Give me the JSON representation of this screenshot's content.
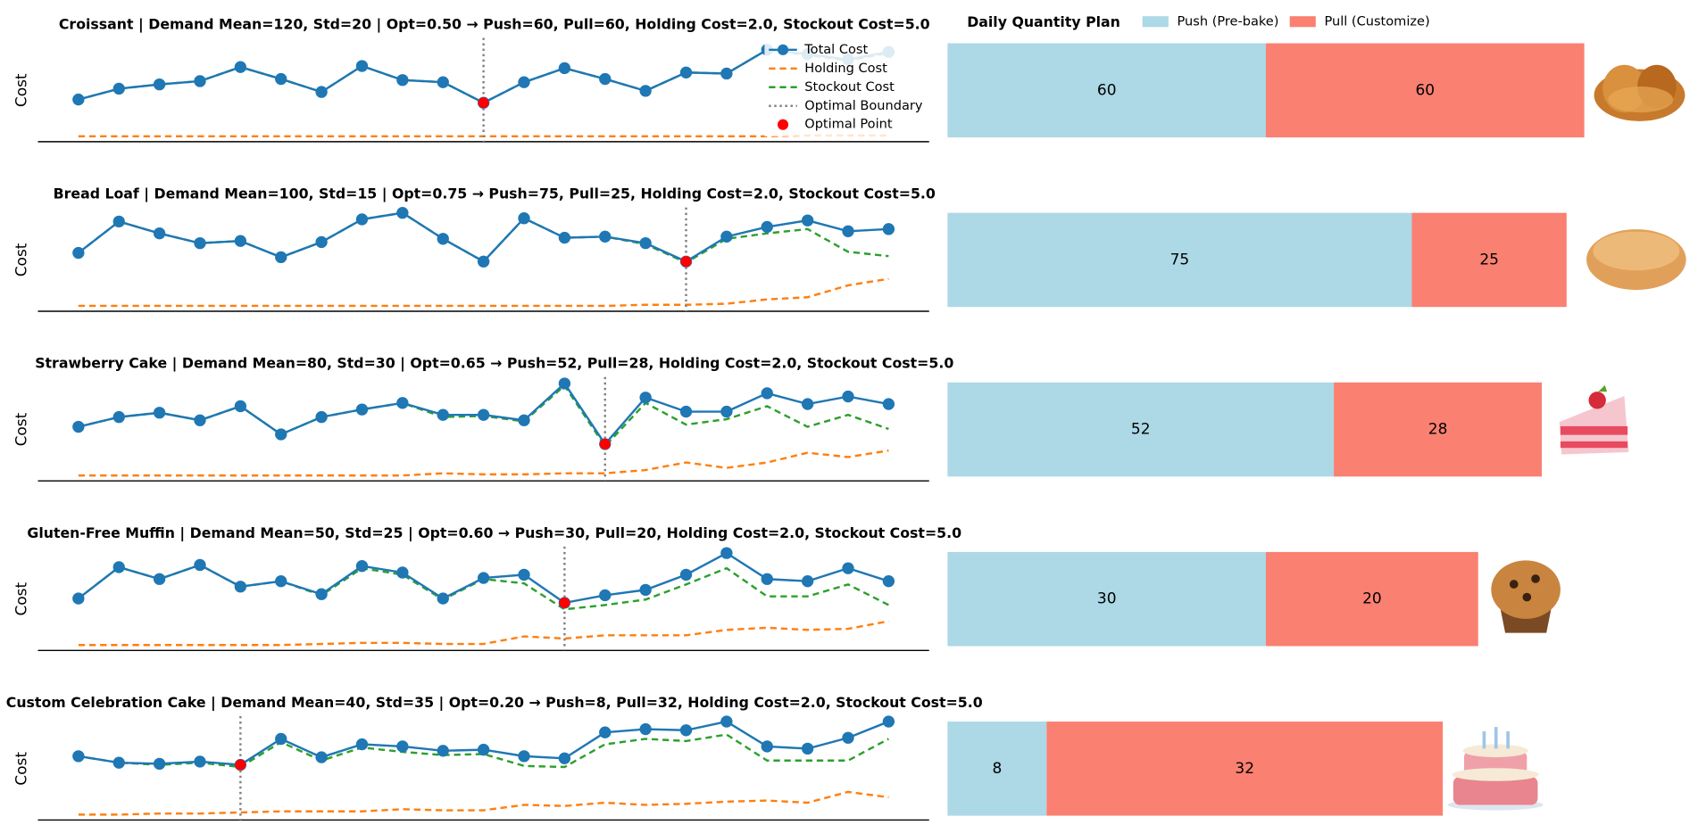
{
  "chart_data": [
    {
      "type": "line",
      "title": "Croissant | Demand Mean=120, Std=20 | Opt=0.50 → Push=60, Pull=60, Holding Cost=2.0, Stockout Cost=5.0",
      "ylabel": "Cost",
      "x": [
        0,
        0.05,
        0.1,
        0.15,
        0.2,
        0.25,
        0.3,
        0.35,
        0.4,
        0.45,
        0.5,
        0.55,
        0.6,
        0.65,
        0.7,
        0.75,
        0.8,
        0.85,
        0.9,
        0.95,
        1
      ],
      "xlim": [
        -0.05,
        1.05
      ],
      "ylim": [
        -5,
        90
      ],
      "optimal_x": 0.5,
      "legend": {
        "corner": "upper right",
        "boundary": "Optimal Boundary",
        "point": "Optimal Point",
        "point_color": "#ff0000",
        "boundary_color": "#808080"
      },
      "series": [
        {
          "name": "Total Cost",
          "color": "#1f77b4",
          "values": [
            34,
            44,
            48,
            51,
            64,
            53,
            41,
            65,
            52,
            50,
            31,
            50,
            63,
            53,
            42,
            59,
            58,
            80,
            76,
            71,
            78
          ]
        },
        {
          "name": "Holding Cost",
          "color": "#ff7f0e",
          "values": [
            0,
            0,
            0,
            0,
            0,
            0,
            0,
            0,
            0,
            0,
            0,
            0,
            0,
            0,
            0,
            0,
            0,
            0,
            1,
            1,
            1
          ]
        },
        {
          "name": "Stockout Cost",
          "color": "#2ca02c",
          "values": [
            34,
            44,
            48,
            51,
            64,
            53,
            41,
            65,
            52,
            50,
            31,
            50,
            63,
            53,
            42,
            59,
            58,
            80,
            75,
            70,
            77
          ]
        }
      ]
    },
    {
      "type": "line",
      "title": "Bread Loaf | Demand Mean=100, Std=15 | Opt=0.75 → Push=75, Pull=25, Holding Cost=2.0, Stockout Cost=5.0",
      "ylabel": "Cost",
      "x": [
        0,
        0.05,
        0.1,
        0.15,
        0.2,
        0.25,
        0.3,
        0.35,
        0.4,
        0.45,
        0.5,
        0.55,
        0.6,
        0.65,
        0.7,
        0.75,
        0.8,
        0.85,
        0.9,
        0.95,
        1
      ],
      "xlim": [
        -0.05,
        1.05
      ],
      "ylim": [
        -5,
        90
      ],
      "optimal_x": 0.75,
      "series": [
        {
          "name": "Total Cost",
          "color": "#1f77b4",
          "values": [
            49,
            78,
            67,
            58,
            60,
            45,
            59,
            80,
            86,
            62,
            41,
            81,
            63,
            64,
            58,
            41,
            64,
            73,
            79,
            69,
            71
          ]
        },
        {
          "name": "Holding Cost",
          "color": "#ff7f0e",
          "values": [
            0,
            0,
            0,
            0,
            0,
            0,
            0,
            0,
            0,
            0,
            0,
            0,
            0,
            0,
            1,
            1,
            2,
            6,
            8,
            19,
            25
          ]
        },
        {
          "name": "Stockout Cost",
          "color": "#2ca02c",
          "values": [
            49,
            78,
            67,
            58,
            60,
            45,
            59,
            80,
            86,
            62,
            41,
            81,
            63,
            64,
            57,
            40,
            62,
            67,
            71,
            50,
            46
          ]
        }
      ]
    },
    {
      "type": "line",
      "title": "Strawberry Cake | Demand Mean=80, Std=30 | Opt=0.65 → Push=52, Pull=28, Holding Cost=2.0, Stockout Cost=5.0",
      "ylabel": "Cost",
      "x": [
        0,
        0.05,
        0.1,
        0.15,
        0.2,
        0.25,
        0.3,
        0.35,
        0.4,
        0.45,
        0.5,
        0.55,
        0.6,
        0.65,
        0.7,
        0.75,
        0.8,
        0.85,
        0.9,
        0.95,
        1
      ],
      "xlim": [
        -0.05,
        1.05
      ],
      "ylim": [
        -5,
        90
      ],
      "optimal_x": 0.65,
      "series": [
        {
          "name": "Total Cost",
          "color": "#1f77b4",
          "values": [
            45,
            54,
            58,
            51,
            64,
            38,
            54,
            61,
            67,
            56,
            56,
            51,
            85,
            29,
            72,
            59,
            59,
            76,
            66,
            73,
            66
          ]
        },
        {
          "name": "Holding Cost",
          "color": "#ff7f0e",
          "values": [
            0,
            0,
            0,
            0,
            0,
            0,
            0,
            0,
            0,
            2,
            1,
            1,
            2,
            2,
            5,
            12,
            7,
            12,
            21,
            17,
            23
          ]
        },
        {
          "name": "Stockout Cost",
          "color": "#2ca02c",
          "values": [
            45,
            54,
            58,
            51,
            64,
            38,
            54,
            61,
            67,
            54,
            55,
            50,
            83,
            27,
            67,
            47,
            52,
            64,
            45,
            56,
            43
          ]
        }
      ]
    },
    {
      "type": "line",
      "title": "Gluten-Free Muffin | Demand Mean=50, Std=25 | Opt=0.60 → Push=30, Pull=20, Holding Cost=2.0, Stockout Cost=5.0",
      "ylabel": "Cost",
      "x": [
        0,
        0.05,
        0.1,
        0.15,
        0.2,
        0.25,
        0.3,
        0.35,
        0.4,
        0.45,
        0.5,
        0.55,
        0.6,
        0.65,
        0.7,
        0.75,
        0.8,
        0.85,
        0.9,
        0.95,
        1
      ],
      "xlim": [
        -0.05,
        1.05
      ],
      "ylim": [
        -5,
        90
      ],
      "optimal_x": 0.6,
      "series": [
        {
          "name": "Total Cost",
          "color": "#1f77b4",
          "values": [
            43,
            72,
            61,
            74,
            54,
            59,
            47,
            73,
            67,
            43,
            62,
            65,
            39,
            46,
            51,
            65,
            85,
            61,
            59,
            71,
            59
          ]
        },
        {
          "name": "Holding Cost",
          "color": "#ff7f0e",
          "values": [
            0,
            0,
            0,
            0,
            0,
            0,
            1,
            2,
            2,
            1,
            1,
            8,
            6,
            9,
            9,
            9,
            14,
            16,
            14,
            15,
            22
          ]
        },
        {
          "name": "Stockout Cost",
          "color": "#2ca02c",
          "values": [
            43,
            72,
            61,
            74,
            54,
            59,
            46,
            71,
            65,
            42,
            61,
            57,
            33,
            37,
            42,
            56,
            71,
            45,
            45,
            56,
            37
          ]
        }
      ]
    },
    {
      "type": "line",
      "title": "Custom Celebration Cake | Demand Mean=40, Std=35 | Opt=0.20 → Push=8, Pull=32, Holding Cost=2.0, Stockout Cost=5.0",
      "ylabel": "Cost",
      "x": [
        0,
        0.05,
        0.1,
        0.15,
        0.2,
        0.25,
        0.3,
        0.35,
        0.4,
        0.45,
        0.5,
        0.55,
        0.6,
        0.65,
        0.7,
        0.75,
        0.8,
        0.85,
        0.9,
        0.95,
        1
      ],
      "xlim": [
        -0.05,
        1.05
      ],
      "ylim": [
        -5,
        90
      ],
      "optimal_x": 0.2,
      "series": [
        {
          "name": "Total Cost",
          "color": "#1f77b4",
          "values": [
            54,
            48,
            47,
            49,
            46,
            70,
            53,
            65,
            63,
            59,
            60,
            54,
            52,
            76,
            79,
            78,
            86,
            63,
            61,
            71,
            86
          ]
        },
        {
          "name": "Holding Cost",
          "color": "#ff7f0e",
          "values": [
            0,
            0,
            1,
            1,
            2,
            3,
            3,
            3,
            5,
            4,
            4,
            9,
            8,
            11,
            9,
            10,
            12,
            13,
            11,
            21,
            16
          ]
        },
        {
          "name": "Stockout Cost",
          "color": "#2ca02c",
          "values": [
            54,
            48,
            46,
            48,
            44,
            67,
            50,
            62,
            58,
            55,
            56,
            45,
            44,
            65,
            70,
            68,
            74,
            50,
            50,
            50,
            70
          ]
        }
      ]
    },
    {
      "type": "stacked_barh",
      "title": "Daily Quantity Plan",
      "xlims": [
        [
          0,
          140
        ],
        [
          0,
          120
        ],
        [
          0,
          100
        ],
        [
          0,
          70
        ],
        [
          0,
          60
        ]
      ],
      "series": [
        {
          "name": "Push (Pre-bake)",
          "color": "#add8e6",
          "values": [
            60,
            75,
            52,
            30,
            8
          ]
        },
        {
          "name": "Pull (Customize)",
          "color": "#fa8072",
          "values": [
            60,
            25,
            28,
            20,
            32
          ]
        }
      ]
    }
  ]
}
